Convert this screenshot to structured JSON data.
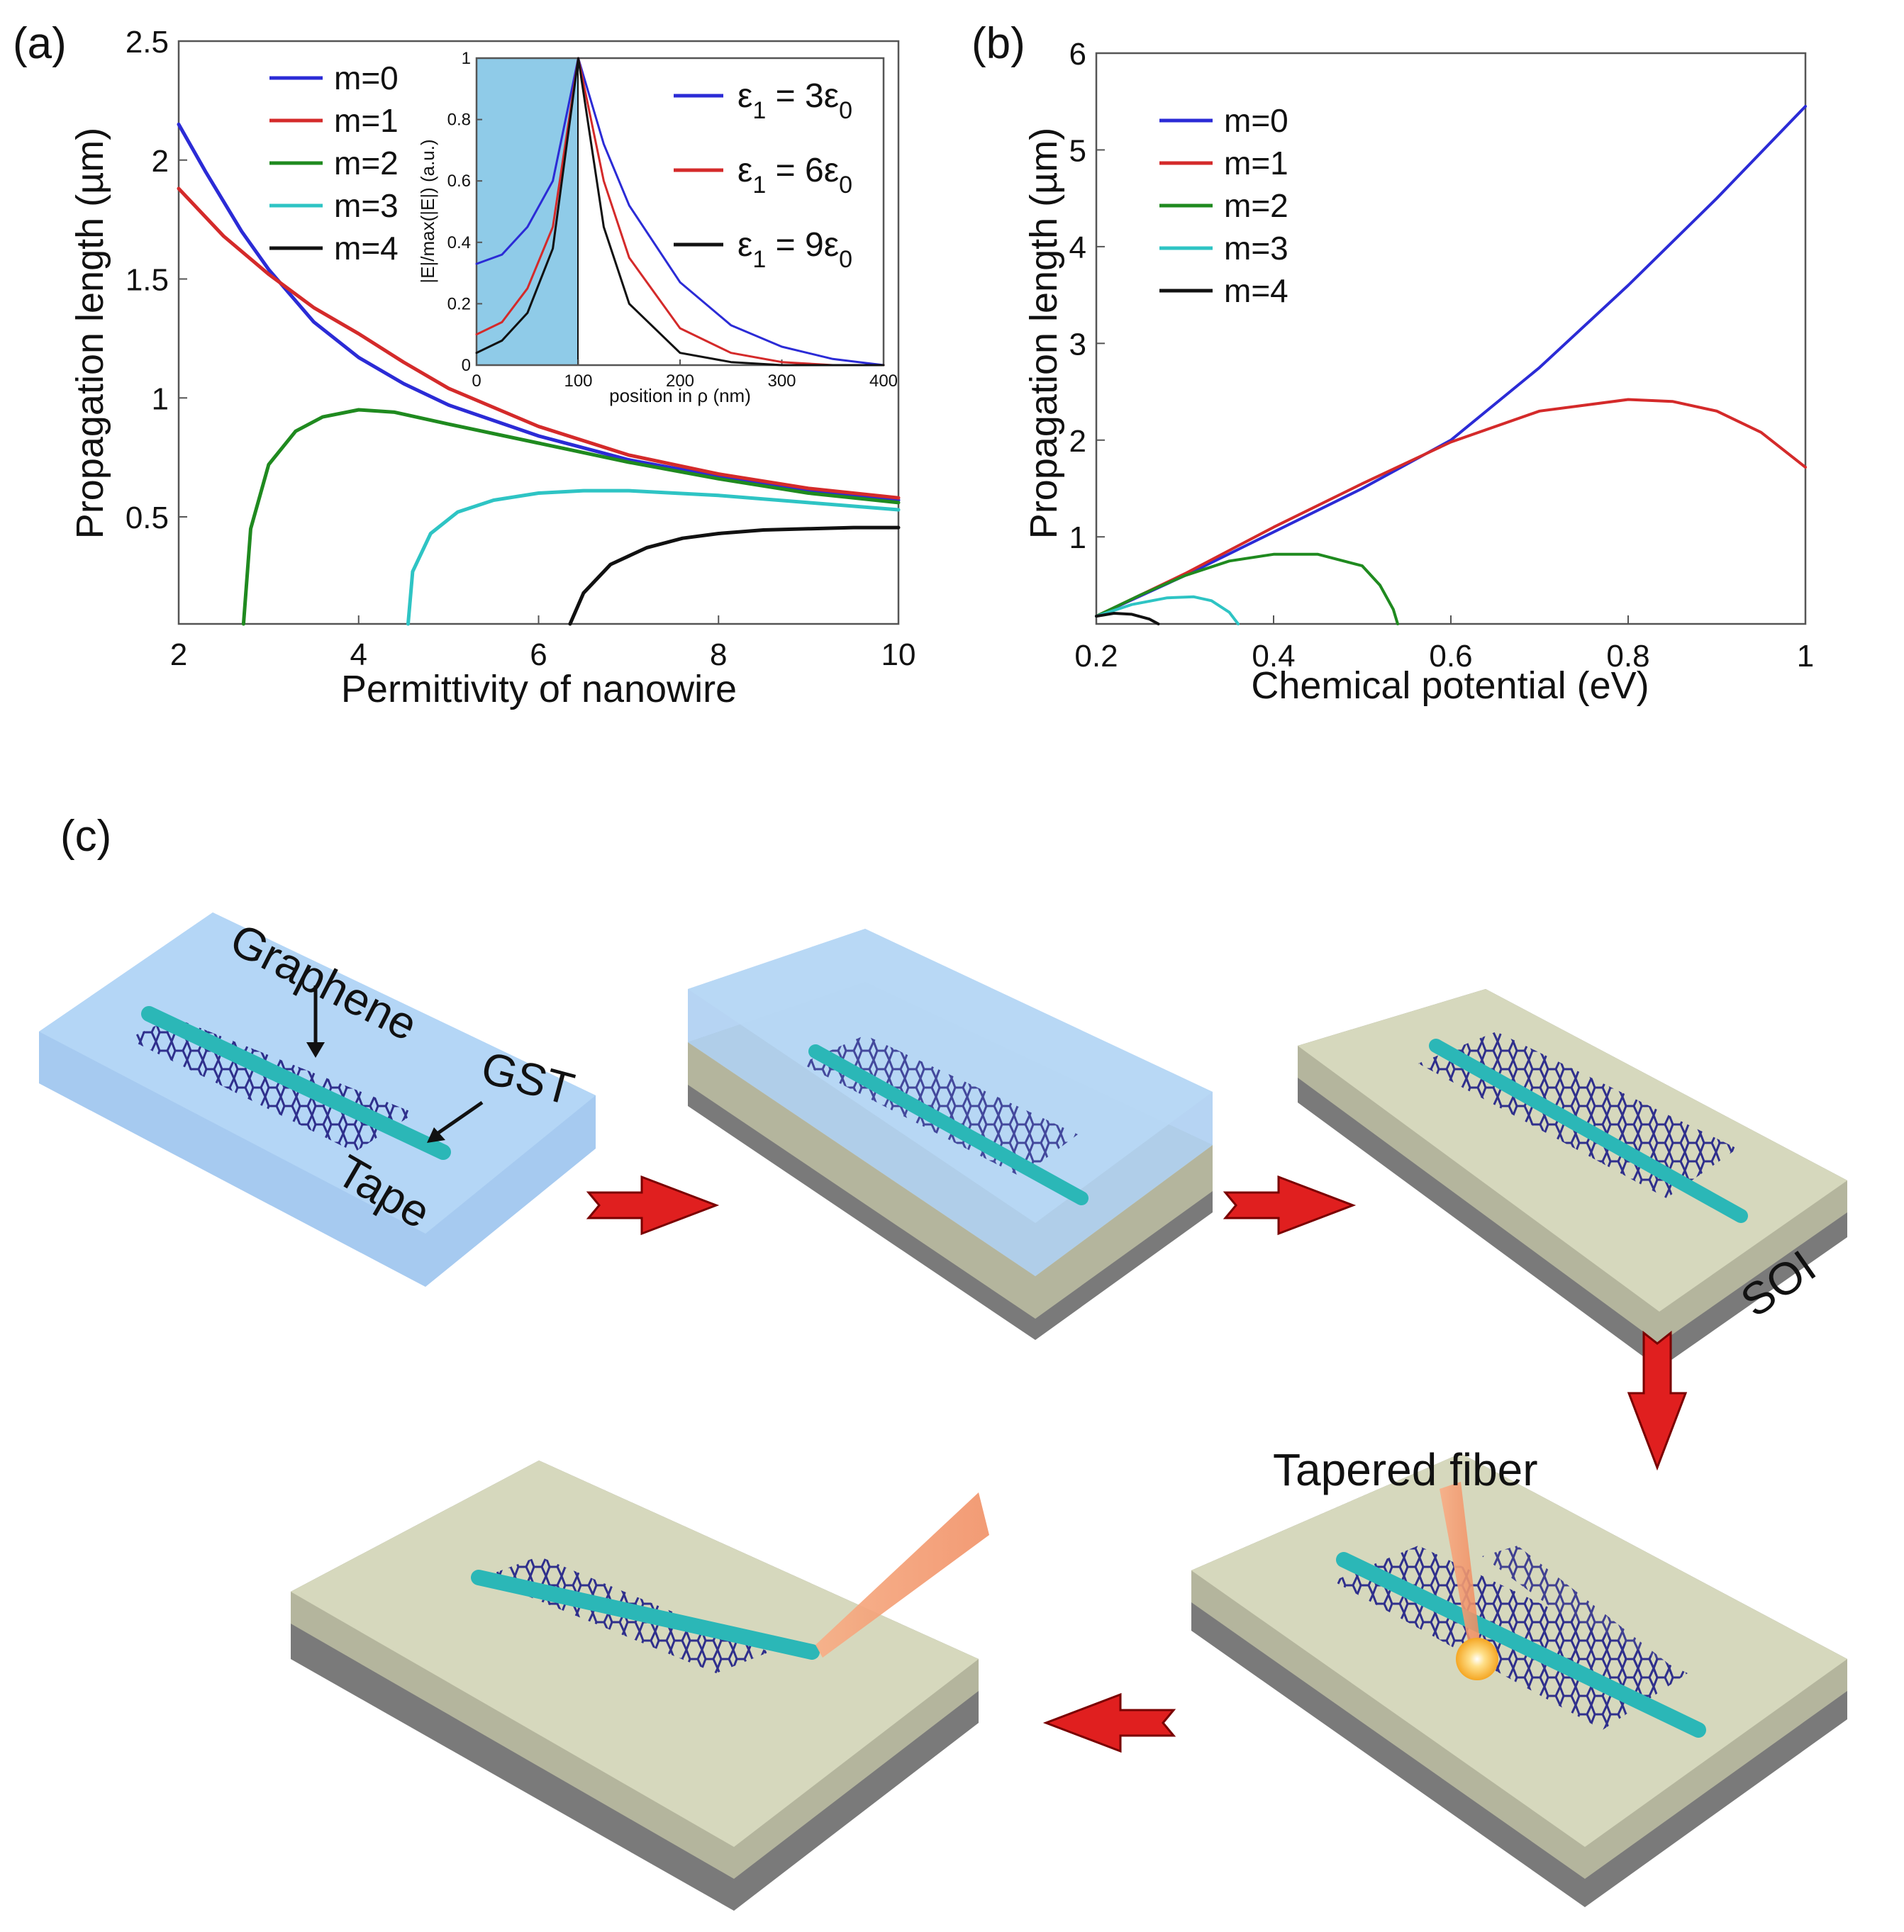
{
  "panels": {
    "a": {
      "label": "(a)"
    },
    "b": {
      "label": "(b)"
    },
    "c": {
      "label": "(c)"
    }
  },
  "chart_data": [
    {
      "id": "a",
      "type": "line",
      "xlabel": "Permittivity of nanowire",
      "ylabel": "Propagation length (µm)",
      "xlim": [
        2,
        10
      ],
      "ylim": [
        0.05,
        2.5
      ],
      "xticks": [
        2,
        4,
        6,
        8,
        10
      ],
      "yticks": [
        0.5,
        1,
        1.5,
        2,
        2.5
      ],
      "legend": "top-left",
      "series": [
        {
          "name": "m=0",
          "color": "#2b2bd6",
          "x": [
            2,
            2.3,
            2.7,
            3,
            3.5,
            4,
            4.5,
            5,
            6,
            7,
            8,
            9,
            10
          ],
          "y": [
            2.15,
            1.95,
            1.7,
            1.54,
            1.32,
            1.17,
            1.06,
            0.97,
            0.84,
            0.74,
            0.67,
            0.61,
            0.57
          ]
        },
        {
          "name": "m=1",
          "color": "#d42a2a",
          "x": [
            2,
            2.5,
            3,
            3.5,
            4,
            4.5,
            5,
            6,
            7,
            8,
            9,
            10
          ],
          "y": [
            1.88,
            1.68,
            1.52,
            1.38,
            1.27,
            1.15,
            1.04,
            0.88,
            0.76,
            0.68,
            0.62,
            0.58
          ]
        },
        {
          "name": "m=2",
          "color": "#1f8a1f",
          "x": [
            2.72,
            2.8,
            3.0,
            3.3,
            3.6,
            4.0,
            4.4,
            5,
            6,
            7,
            8,
            9,
            10
          ],
          "y": [
            0.05,
            0.45,
            0.72,
            0.86,
            0.92,
            0.95,
            0.94,
            0.89,
            0.81,
            0.73,
            0.66,
            0.6,
            0.56
          ]
        },
        {
          "name": "m=3",
          "color": "#2ec4c4",
          "x": [
            4.55,
            4.6,
            4.8,
            5.1,
            5.5,
            6,
            6.5,
            7,
            8,
            9,
            10
          ],
          "y": [
            0.05,
            0.27,
            0.43,
            0.52,
            0.57,
            0.6,
            0.61,
            0.61,
            0.59,
            0.56,
            0.53
          ]
        },
        {
          "name": "m=4",
          "color": "#111111",
          "x": [
            6.35,
            6.5,
            6.8,
            7.2,
            7.6,
            8,
            8.5,
            9,
            9.5,
            10
          ],
          "y": [
            0.05,
            0.18,
            0.3,
            0.37,
            0.41,
            0.43,
            0.445,
            0.45,
            0.455,
            0.455
          ]
        }
      ]
    },
    {
      "id": "a-inset",
      "type": "line",
      "xlabel": "position in ρ (nm)",
      "ylabel": "|E|/max(|E|) (a.u.)",
      "xlim": [
        0,
        400
      ],
      "ylim": [
        0,
        1
      ],
      "xticks": [
        0,
        100,
        200,
        300,
        400
      ],
      "yticks": [
        0,
        0.2,
        0.4,
        0.6,
        0.8,
        1
      ],
      "shaded_region": [
        0,
        100
      ],
      "legend": "right",
      "series": [
        {
          "name": "ε",
          "subscript": "1",
          "equals": " = 3ε",
          "eps0sub": "0",
          "color": "#2b2bd6",
          "x": [
            0,
            25,
            50,
            75,
            100,
            125,
            150,
            200,
            250,
            300,
            350,
            400
          ],
          "y": [
            0.33,
            0.36,
            0.45,
            0.6,
            1.0,
            0.72,
            0.52,
            0.27,
            0.13,
            0.06,
            0.02,
            0.0
          ]
        },
        {
          "name": "ε",
          "subscript": "1",
          "equals": " = 6ε",
          "eps0sub": "0",
          "color": "#d42a2a",
          "x": [
            0,
            25,
            50,
            75,
            100,
            125,
            150,
            200,
            250,
            300,
            350,
            400
          ],
          "y": [
            0.1,
            0.14,
            0.25,
            0.45,
            1.0,
            0.6,
            0.35,
            0.12,
            0.04,
            0.01,
            0.0,
            0.0
          ]
        },
        {
          "name": "ε",
          "subscript": "1",
          "equals": " = 9ε",
          "eps0sub": "0",
          "color": "#111111",
          "x": [
            0,
            25,
            50,
            75,
            100,
            125,
            150,
            200,
            250,
            300,
            350,
            400
          ],
          "y": [
            0.04,
            0.08,
            0.17,
            0.38,
            1.0,
            0.45,
            0.2,
            0.04,
            0.01,
            0.0,
            0.0,
            0.0
          ]
        }
      ]
    },
    {
      "id": "b",
      "type": "line",
      "xlabel": "Chemical potential (eV)",
      "ylabel": "Propagation length (µm)",
      "xlim": [
        0.2,
        1
      ],
      "ylim": [
        0.1,
        6
      ],
      "xticks": [
        0.2,
        0.4,
        0.6,
        0.8,
        1
      ],
      "yticks": [
        1,
        2,
        3,
        4,
        5,
        6
      ],
      "legend": "top-left",
      "series": [
        {
          "name": "m=0",
          "color": "#2b2bd6",
          "x": [
            0.2,
            0.3,
            0.4,
            0.5,
            0.6,
            0.7,
            0.8,
            0.9,
            1.0
          ],
          "y": [
            0.18,
            0.6,
            1.05,
            1.5,
            2.0,
            2.75,
            3.6,
            4.5,
            5.45
          ]
        },
        {
          "name": "m=1",
          "color": "#d42a2a",
          "x": [
            0.2,
            0.3,
            0.4,
            0.5,
            0.6,
            0.7,
            0.8,
            0.85,
            0.9,
            0.95,
            1.0
          ],
          "y": [
            0.18,
            0.62,
            1.1,
            1.55,
            1.98,
            2.3,
            2.42,
            2.4,
            2.3,
            2.08,
            1.72
          ]
        },
        {
          "name": "m=2",
          "color": "#1f8a1f",
          "x": [
            0.2,
            0.25,
            0.3,
            0.35,
            0.4,
            0.45,
            0.5,
            0.52,
            0.535,
            0.54
          ],
          "y": [
            0.18,
            0.4,
            0.6,
            0.75,
            0.82,
            0.82,
            0.7,
            0.5,
            0.25,
            0.1
          ]
        },
        {
          "name": "m=3",
          "color": "#2ec4c4",
          "x": [
            0.2,
            0.24,
            0.28,
            0.31,
            0.33,
            0.35,
            0.36
          ],
          "y": [
            0.18,
            0.3,
            0.37,
            0.38,
            0.34,
            0.22,
            0.1
          ]
        },
        {
          "name": "m=4",
          "color": "#111111",
          "x": [
            0.2,
            0.22,
            0.24,
            0.26,
            0.27
          ],
          "y": [
            0.18,
            0.21,
            0.2,
            0.15,
            0.1
          ]
        }
      ]
    }
  ],
  "diagram": {
    "labels": {
      "graphene": "Graphene",
      "gst": "GST",
      "tape": "Tape",
      "soi": "SOI",
      "tapered_fiber": "Tapered fiber"
    },
    "colors": {
      "tape": "#a9cdf1",
      "tape_side": "#8fbbe8",
      "substrate_top": "#d6d8bd",
      "substrate_mid": "#b4b59d",
      "substrate_bottom": "#7a7a7a",
      "graphene": "#2f2f8c",
      "gst": "#2bb7b7",
      "arrow": "#e01f1f",
      "fiber": "#f4a178",
      "spot": "#f5a623"
    }
  }
}
